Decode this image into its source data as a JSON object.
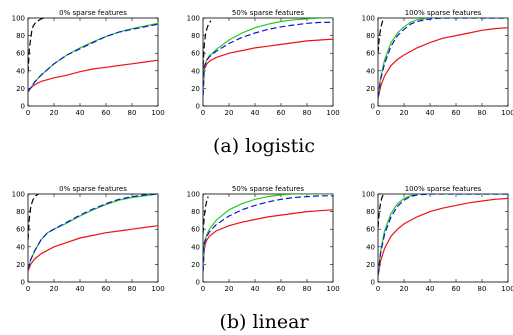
{
  "captions": {
    "a": "(a) logistic",
    "b": "(b) linear"
  },
  "colors": {
    "red": "#ee1111",
    "green": "#22cc22",
    "blue": "#1111dd",
    "black": "#000000"
  },
  "chart_data": [
    {
      "type": "line",
      "row": 0,
      "col": 0,
      "title": "0% sparse features",
      "xlim": [
        0,
        100
      ],
      "ylim": [
        0,
        100
      ],
      "xticks": [
        0,
        20,
        40,
        60,
        80,
        100
      ],
      "yticks": [
        0,
        20,
        40,
        60,
        80,
        100
      ],
      "series": [
        {
          "color": "black",
          "dash": "6,3",
          "x": [
            0,
            1,
            2,
            3,
            4,
            6,
            8,
            10,
            13
          ],
          "y": [
            38,
            64,
            76,
            86,
            91,
            95,
            97,
            99,
            100
          ]
        },
        {
          "color": "red",
          "dash": "",
          "x": [
            0,
            5,
            10,
            20,
            30,
            40,
            50,
            60,
            70,
            80,
            90,
            100
          ],
          "y": [
            18,
            24,
            28,
            32,
            35,
            39,
            42,
            44,
            46,
            48,
            50,
            52
          ]
        },
        {
          "color": "green",
          "dash": "",
          "x": [
            0,
            5,
            10,
            20,
            30,
            40,
            50,
            60,
            70,
            80,
            90,
            100
          ],
          "y": [
            16,
            27,
            35,
            48,
            58,
            66,
            73,
            79,
            84,
            88,
            91,
            94
          ]
        },
        {
          "color": "blue",
          "dash": "6,3",
          "x": [
            0,
            5,
            10,
            20,
            30,
            40,
            50,
            60,
            70,
            80,
            90,
            100
          ],
          "y": [
            16,
            27,
            35,
            48,
            58,
            65,
            72,
            79,
            84,
            87,
            90,
            93
          ]
        }
      ]
    },
    {
      "type": "line",
      "row": 0,
      "col": 1,
      "title": "50% sparse features",
      "xlim": [
        0,
        100
      ],
      "ylim": [
        0,
        100
      ],
      "xticks": [
        0,
        20,
        40,
        60,
        80,
        100
      ],
      "yticks": [
        0,
        20,
        40,
        60,
        80,
        100
      ],
      "series": [
        {
          "color": "black",
          "dash": "6,3",
          "x": [
            0,
            1,
            2,
            3,
            4,
            6
          ],
          "y": [
            45,
            70,
            82,
            88,
            92,
            97
          ]
        },
        {
          "color": "red",
          "dash": "",
          "x": [
            0,
            1,
            3,
            5,
            10,
            20,
            30,
            40,
            50,
            60,
            70,
            80,
            90,
            100
          ],
          "y": [
            10,
            42,
            48,
            51,
            55,
            60,
            63,
            66,
            68,
            70,
            72,
            74,
            75,
            76
          ]
        },
        {
          "color": "green",
          "dash": "",
          "x": [
            0,
            1,
            3,
            5,
            10,
            20,
            30,
            40,
            50,
            60,
            70,
            80,
            90,
            100
          ],
          "y": [
            12,
            45,
            53,
            57,
            64,
            75,
            83,
            89,
            93,
            96,
            98,
            99,
            100,
            100
          ]
        },
        {
          "color": "blue",
          "dash": "6,3",
          "x": [
            0,
            1,
            3,
            5,
            10,
            20,
            30,
            40,
            50,
            60,
            70,
            80,
            90,
            100
          ],
          "y": [
            12,
            45,
            52,
            56,
            62,
            71,
            78,
            83,
            87,
            90,
            92,
            94,
            95,
            95
          ]
        }
      ]
    },
    {
      "type": "line",
      "row": 0,
      "col": 2,
      "title": "100% sparse features",
      "xlim": [
        0,
        100
      ],
      "ylim": [
        0,
        100
      ],
      "xticks": [
        0,
        20,
        40,
        60,
        80,
        100
      ],
      "yticks": [
        0,
        20,
        40,
        60,
        80,
        100
      ],
      "series": [
        {
          "color": "black",
          "dash": "6,3",
          "x": [
            0,
            1,
            2,
            3,
            4
          ],
          "y": [
            60,
            78,
            88,
            94,
            98
          ]
        },
        {
          "color": "red",
          "dash": "",
          "x": [
            0,
            2,
            5,
            10,
            15,
            20,
            30,
            40,
            50,
            60,
            70,
            80,
            90,
            100
          ],
          "y": [
            8,
            22,
            34,
            46,
            53,
            58,
            66,
            72,
            77,
            80,
            83,
            86,
            88,
            89
          ]
        },
        {
          "color": "green",
          "dash": "",
          "x": [
            0,
            2,
            5,
            10,
            15,
            20,
            25,
            30,
            40,
            50,
            100
          ],
          "y": [
            10,
            32,
            52,
            72,
            83,
            90,
            95,
            98,
            100,
            100,
            100
          ]
        },
        {
          "color": "blue",
          "dash": "6,3",
          "x": [
            0,
            2,
            5,
            10,
            15,
            20,
            25,
            30,
            40,
            50,
            100
          ],
          "y": [
            10,
            30,
            48,
            68,
            80,
            87,
            93,
            96,
            99,
            100,
            100
          ]
        }
      ]
    },
    {
      "type": "line",
      "row": 1,
      "col": 0,
      "title": "0% sparse features",
      "xlim": [
        0,
        100
      ],
      "ylim": [
        0,
        100
      ],
      "xticks": [
        0,
        20,
        40,
        60,
        80,
        100
      ],
      "yticks": [
        0,
        20,
        40,
        60,
        80,
        100
      ],
      "series": [
        {
          "color": "black",
          "dash": "6,3",
          "x": [
            0,
            1,
            2,
            3,
            4,
            6,
            8
          ],
          "y": [
            48,
            72,
            84,
            90,
            94,
            98,
            100
          ]
        },
        {
          "color": "red",
          "dash": "",
          "x": [
            0,
            2,
            5,
            10,
            20,
            30,
            40,
            50,
            60,
            70,
            80,
            90,
            100
          ],
          "y": [
            12,
            20,
            26,
            32,
            40,
            45,
            50,
            53,
            56,
            58,
            60,
            62,
            64
          ]
        },
        {
          "color": "green",
          "dash": "",
          "x": [
            0,
            2,
            5,
            10,
            15,
            20,
            30,
            40,
            50,
            60,
            70,
            80,
            90,
            100
          ],
          "y": [
            14,
            25,
            35,
            48,
            56,
            60,
            67,
            75,
            82,
            88,
            93,
            96,
            98,
            100
          ]
        },
        {
          "color": "blue",
          "dash": "6,3",
          "x": [
            0,
            2,
            5,
            10,
            15,
            20,
            30,
            40,
            50,
            60,
            70,
            80,
            90,
            100
          ],
          "y": [
            14,
            25,
            35,
            48,
            56,
            60,
            68,
            76,
            83,
            89,
            94,
            97,
            99,
            100
          ]
        }
      ]
    },
    {
      "type": "line",
      "row": 1,
      "col": 1,
      "title": "50% sparse features",
      "xlim": [
        0,
        100
      ],
      "ylim": [
        0,
        100
      ],
      "xticks": [
        0,
        20,
        40,
        60,
        80,
        100
      ],
      "yticks": [
        0,
        20,
        40,
        60,
        80,
        100
      ],
      "series": [
        {
          "color": "black",
          "dash": "6,3",
          "x": [
            0,
            1,
            2,
            3,
            4
          ],
          "y": [
            55,
            75,
            86,
            93,
            97
          ]
        },
        {
          "color": "red",
          "dash": "",
          "x": [
            0,
            1,
            3,
            5,
            10,
            20,
            30,
            40,
            50,
            60,
            70,
            80,
            90,
            100
          ],
          "y": [
            10,
            40,
            48,
            52,
            58,
            64,
            68,
            71,
            74,
            76,
            78,
            80,
            81,
            82
          ]
        },
        {
          "color": "green",
          "dash": "",
          "x": [
            0,
            1,
            3,
            5,
            10,
            20,
            30,
            40,
            50,
            60,
            70,
            80,
            90,
            100
          ],
          "y": [
            12,
            45,
            54,
            60,
            70,
            82,
            89,
            94,
            97,
            99,
            100,
            100,
            100,
            100
          ]
        },
        {
          "color": "blue",
          "dash": "6,3",
          "x": [
            0,
            1,
            3,
            5,
            10,
            20,
            30,
            40,
            50,
            60,
            70,
            80,
            90,
            100
          ],
          "y": [
            12,
            44,
            52,
            57,
            65,
            75,
            82,
            87,
            91,
            94,
            96,
            97,
            98,
            98
          ]
        }
      ]
    },
    {
      "type": "line",
      "row": 1,
      "col": 2,
      "title": "100% sparse features",
      "xlim": [
        0,
        100
      ],
      "ylim": [
        0,
        100
      ],
      "xticks": [
        0,
        20,
        40,
        60,
        80,
        100
      ],
      "yticks": [
        0,
        20,
        40,
        60,
        80,
        100
      ],
      "series": [
        {
          "color": "black",
          "dash": "6,3",
          "x": [
            0,
            1,
            2,
            3,
            4
          ],
          "y": [
            62,
            80,
            90,
            96,
            99
          ]
        },
        {
          "color": "red",
          "dash": "",
          "x": [
            0,
            2,
            5,
            10,
            15,
            20,
            30,
            40,
            50,
            60,
            70,
            80,
            90,
            100
          ],
          "y": [
            6,
            24,
            38,
            52,
            60,
            66,
            74,
            80,
            84,
            87,
            90,
            92,
            94,
            95
          ]
        },
        {
          "color": "green",
          "dash": "",
          "x": [
            0,
            2,
            5,
            10,
            15,
            20,
            25,
            30,
            40,
            100
          ],
          "y": [
            8,
            35,
            58,
            78,
            89,
            95,
            98,
            100,
            100,
            100
          ]
        },
        {
          "color": "blue",
          "dash": "6,3",
          "x": [
            0,
            2,
            5,
            10,
            15,
            20,
            25,
            30,
            40,
            100
          ],
          "y": [
            8,
            33,
            54,
            74,
            86,
            93,
            97,
            99,
            100,
            100
          ]
        }
      ]
    }
  ]
}
